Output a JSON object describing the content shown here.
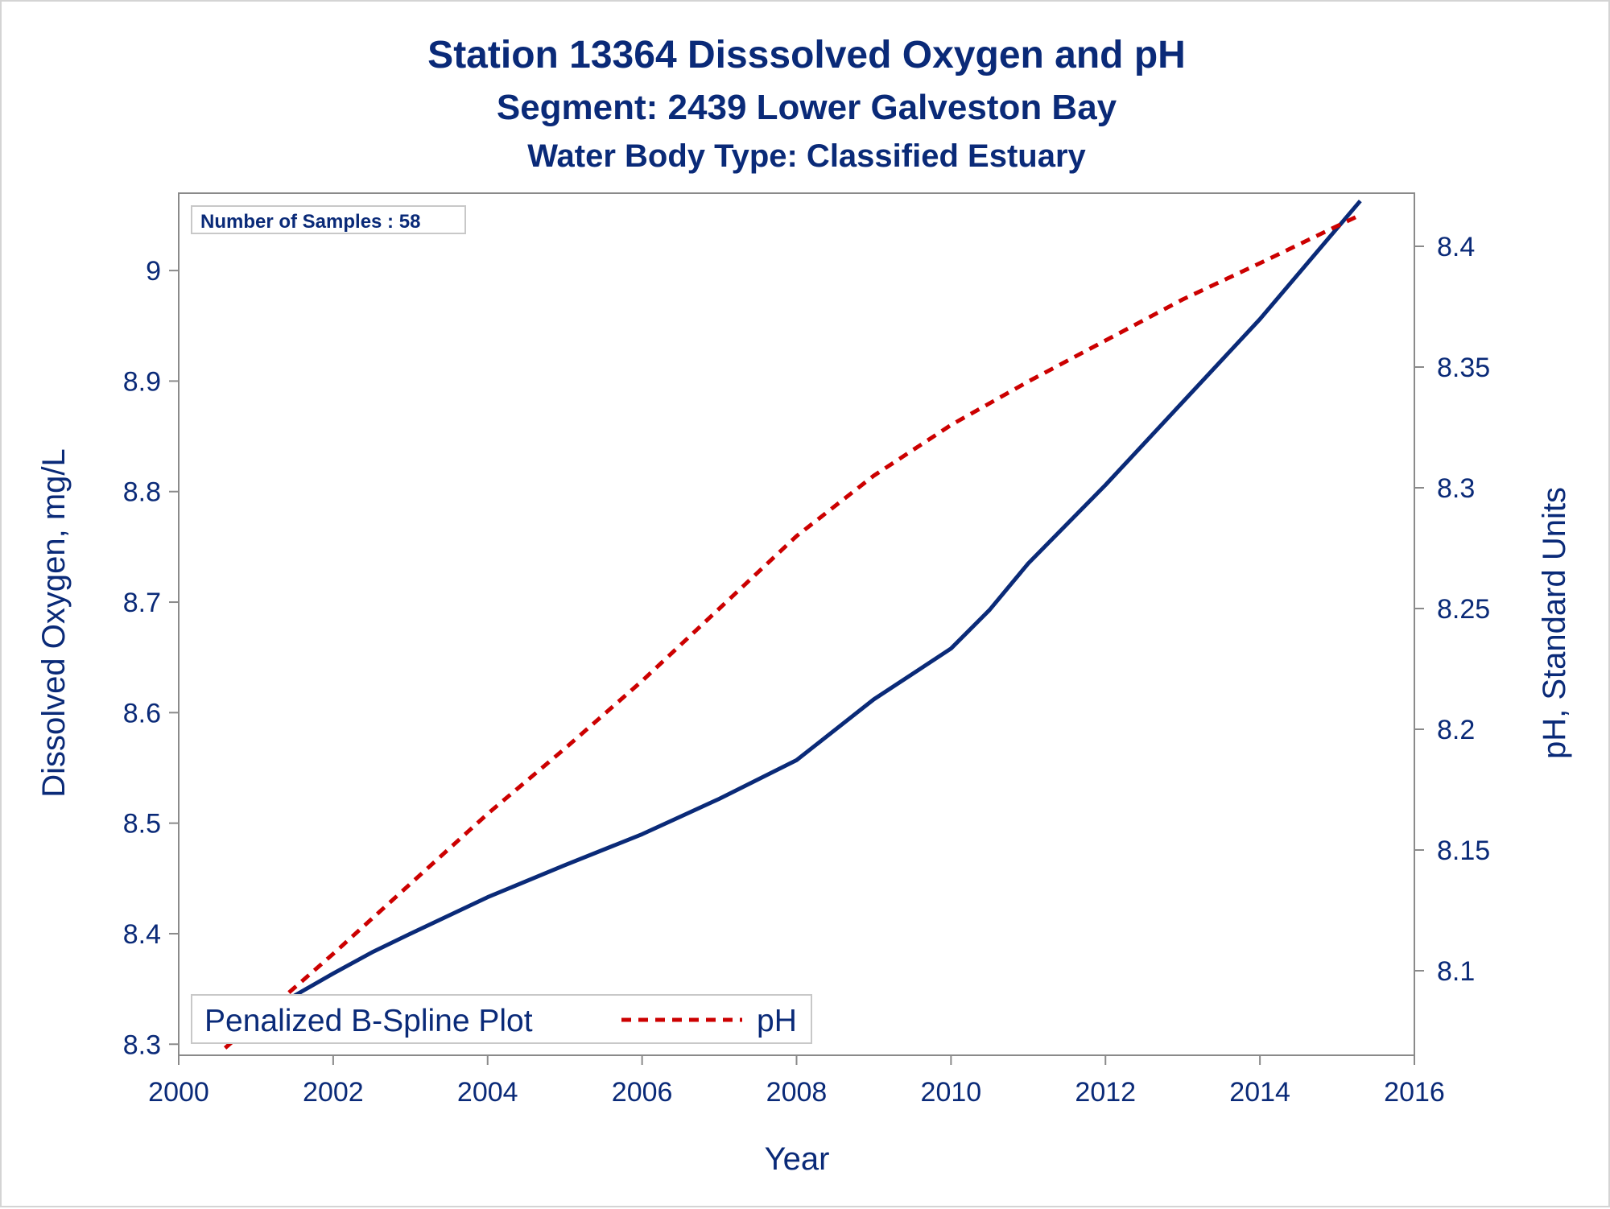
{
  "chart_data": {
    "type": "line",
    "title": "Station 13364   Disssolved Oxygen and pH",
    "subtitle": "Segment: 2439  Lower Galveston Bay",
    "subtitle2": "Water Body Type: Classified Estuary",
    "xlabel": "Year",
    "ylabel_left": "Dissolved Oxygen, mg/L",
    "ylabel_right": "pH, Standard Units",
    "xlim": [
      2000,
      2016
    ],
    "ylim_left": [
      8.29,
      9.07
    ],
    "ylim_right": [
      8.065,
      8.422
    ],
    "x_ticks": [
      "2000",
      "2002",
      "2004",
      "2006",
      "2008",
      "2010",
      "2012",
      "2014",
      "2016"
    ],
    "y_left_ticks": [
      "8.3",
      "8.4",
      "8.5",
      "8.6",
      "8.7",
      "8.8",
      "8.9",
      "9"
    ],
    "y_right_ticks": [
      "8.1",
      "8.15",
      "8.2",
      "8.25",
      "8.3",
      "8.35",
      "8.4"
    ],
    "inset": "Number of Samples : 58",
    "legend": {
      "title": "Penalized B-Spline Plot",
      "placement": "bottom-left"
    },
    "grid": false,
    "series": [
      {
        "axis": "left",
        "color": "#0a2a78",
        "style": "solid",
        "x": [
          2000.6,
          2001.0,
          2001.5,
          2002.0,
          2002.5,
          2003.0,
          2004.0,
          2005.0,
          2006.0,
          2007.0,
          2008.0,
          2009.0,
          2010.0,
          2010.5,
          2011.0,
          2012.0,
          2013.0,
          2014.0,
          2015.3
        ],
        "values": [
          8.31,
          8.325,
          8.344,
          8.364,
          8.383,
          8.4,
          8.433,
          8.462,
          8.49,
          8.522,
          8.557,
          8.612,
          8.658,
          8.693,
          8.735,
          8.806,
          8.881,
          8.956,
          9.063
        ]
      },
      {
        "name": "pH",
        "axis": "right",
        "color": "#cc0000",
        "style": "dashed",
        "x": [
          2000.6,
          2001.0,
          2002.0,
          2003.0,
          2004.0,
          2005.0,
          2006.0,
          2007.0,
          2008.0,
          2009.0,
          2010.0,
          2011.0,
          2012.0,
          2013.0,
          2014.0,
          2015.3
        ],
        "values": [
          8.068,
          8.079,
          8.107,
          8.136,
          8.165,
          8.192,
          8.22,
          8.25,
          8.28,
          8.305,
          8.326,
          8.344,
          8.361,
          8.378,
          8.393,
          8.413
        ]
      }
    ]
  }
}
